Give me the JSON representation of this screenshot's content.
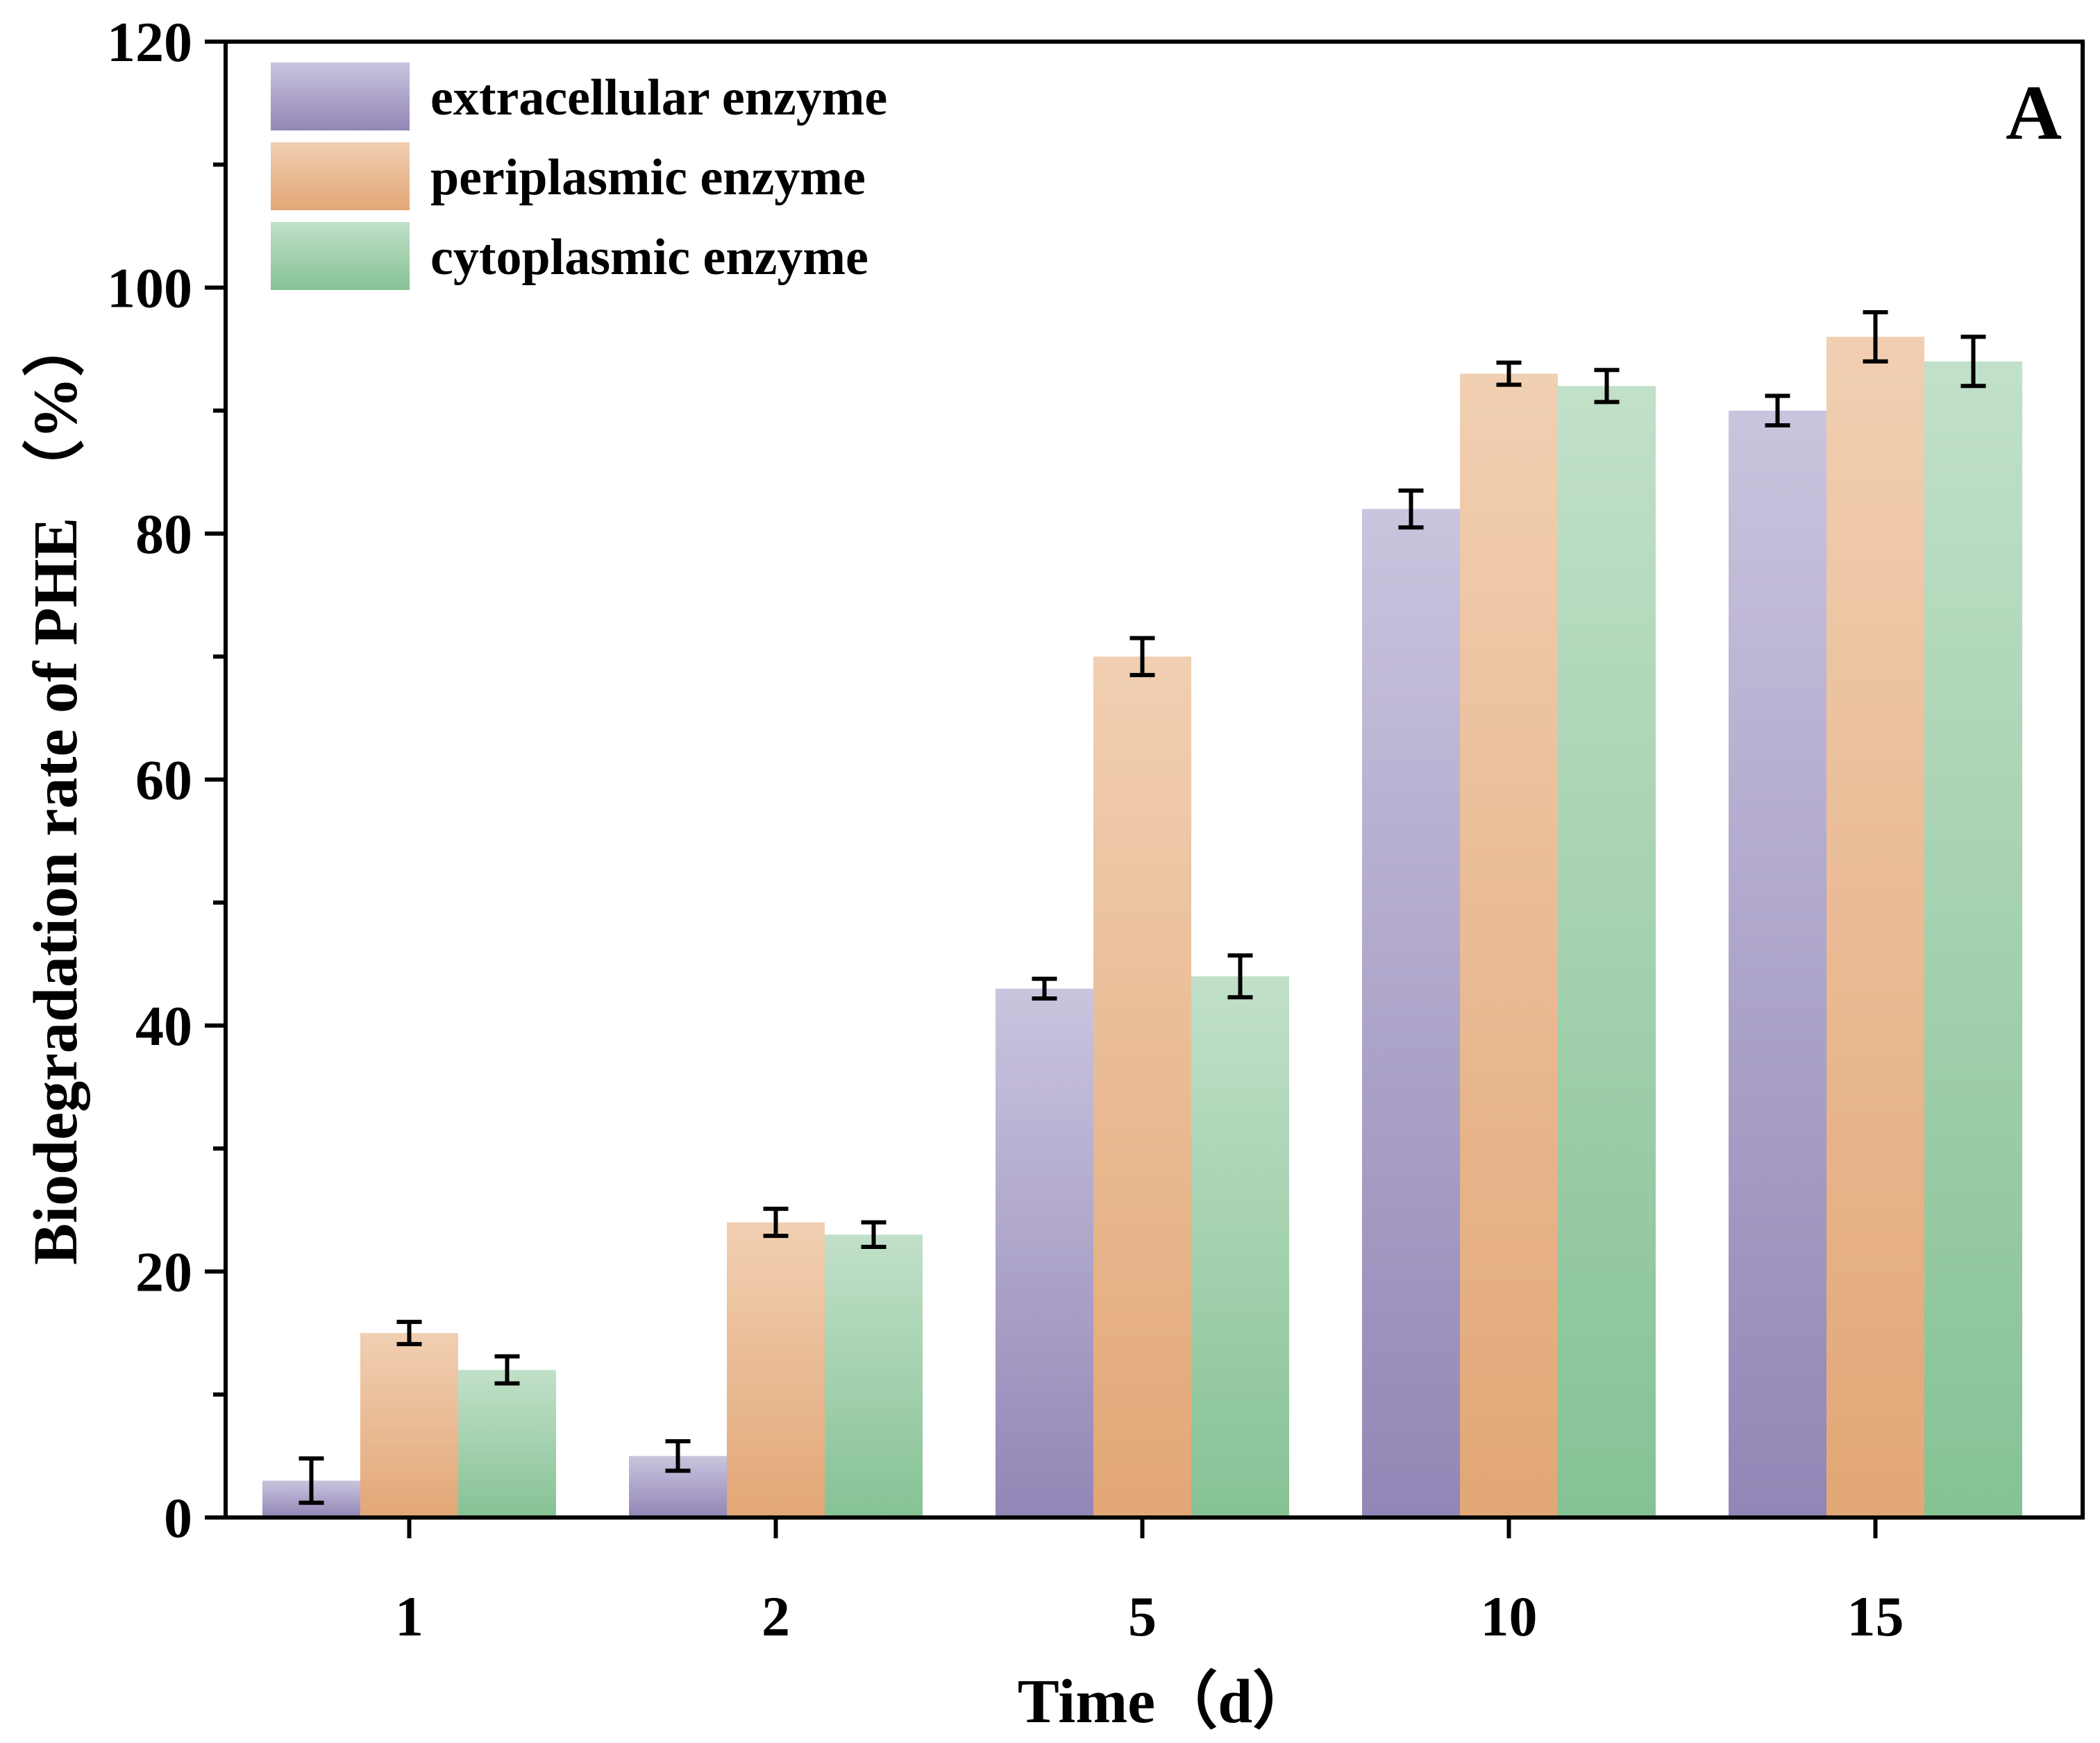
{
  "chart_data": {
    "type": "bar",
    "title": "",
    "panel_label": "A",
    "xlabel": "Time（d）",
    "ylabel": "Biodegradation rate of PHE （%）",
    "categories": [
      "1",
      "2",
      "5",
      "10",
      "15"
    ],
    "ylim": [
      0,
      120
    ],
    "yticks": [
      "0",
      "20",
      "40",
      "60",
      "80",
      "100",
      "120"
    ],
    "legend_position": "top-left",
    "grid": false,
    "series": [
      {
        "name": "extracellular enzyme",
        "values": [
          3,
          5,
          43,
          82,
          90
        ],
        "errors": [
          1.8,
          1.2,
          0.8,
          1.5,
          1.2
        ],
        "color_top": "#cac4de",
        "color_bottom": "#9286b6"
      },
      {
        "name": "periplasmic enzyme",
        "values": [
          15,
          24,
          70,
          93,
          96
        ],
        "errors": [
          0.9,
          1.1,
          1.5,
          0.9,
          2.0
        ],
        "color_top": "#f1cfb2",
        "color_bottom": "#e2a776"
      },
      {
        "name": "cytoplasmic enzyme",
        "values": [
          12,
          23,
          44,
          92,
          94
        ],
        "errors": [
          1.1,
          1.0,
          1.7,
          1.3,
          2.0
        ],
        "color_top": "#c1e0c9",
        "color_bottom": "#86c294"
      }
    ]
  }
}
